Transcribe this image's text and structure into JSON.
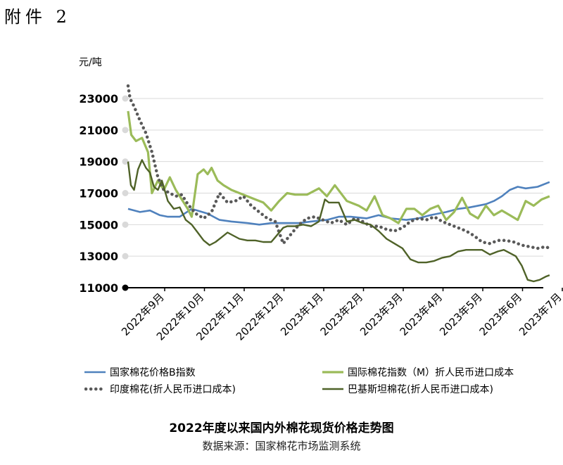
{
  "page": {
    "attachment_label": "附件 2"
  },
  "chart_data": {
    "type": "line",
    "title": "2022年度以来国内外棉花现货价格走势图",
    "source": "数据来源：国家棉花市场监测系统",
    "ylabel": "元/吨",
    "xlabel": "",
    "ylim": [
      11000,
      23000
    ],
    "yticks": [
      11000,
      13000,
      15000,
      17000,
      19000,
      21000,
      23000
    ],
    "grid": true,
    "legend_position": "bottom",
    "categories": [
      "2022年9月",
      "2022年10月",
      "2022年11月",
      "2022年12月",
      "2023年1月",
      "2023年2月",
      "2023年3月",
      "2023年4月",
      "2023年5月",
      "2023年6月",
      "2023年7月"
    ],
    "series": [
      {
        "name": "国家棉花价格B指数",
        "color": "#4f81bd",
        "style": "solid",
        "x": [
          0,
          0.3,
          0.55,
          0.8,
          1.0,
          1.3,
          1.6,
          2.0,
          2.3,
          2.6,
          3.0,
          3.3,
          3.6,
          4.0,
          4.3,
          4.6,
          5.0,
          5.3,
          5.6,
          6.0,
          6.3,
          6.6,
          7.0,
          7.3,
          7.6,
          8.0,
          8.3,
          8.6,
          9.0,
          9.2,
          9.4,
          9.6,
          9.8,
          10.0,
          10.3,
          10.6
        ],
        "values": [
          16000,
          15800,
          15900,
          15600,
          15500,
          15500,
          16000,
          15700,
          15300,
          15200,
          15100,
          15000,
          15100,
          15100,
          15100,
          15200,
          15300,
          15500,
          15500,
          15400,
          15600,
          15400,
          15300,
          15400,
          15600,
          15800,
          16000,
          16100,
          16300,
          16500,
          16800,
          17200,
          17400,
          17300,
          17400,
          17700
        ]
      },
      {
        "name": "国际棉花指数（M）折人民币进口成本",
        "color": "#9bbb59",
        "style": "solid",
        "x": [
          0,
          0.08,
          0.2,
          0.35,
          0.5,
          0.6,
          0.75,
          0.9,
          1.05,
          1.2,
          1.35,
          1.5,
          1.6,
          1.75,
          1.9,
          2.0,
          2.1,
          2.25,
          2.4,
          2.6,
          2.8,
          3.0,
          3.2,
          3.4,
          3.6,
          3.8,
          4.0,
          4.2,
          4.5,
          4.8,
          5.0,
          5.2,
          5.5,
          5.8,
          6.0,
          6.2,
          6.4,
          6.6,
          6.8,
          7.0,
          7.2,
          7.4,
          7.6,
          7.8,
          8.0,
          8.2,
          8.4,
          8.6,
          8.8,
          9.0,
          9.2,
          9.4,
          9.6,
          9.8,
          10.0,
          10.2,
          10.4,
          10.6
        ],
        "values": [
          22200,
          20700,
          20300,
          20500,
          19600,
          17000,
          17800,
          17200,
          18000,
          17200,
          16600,
          16000,
          15500,
          18200,
          18500,
          18200,
          18600,
          17800,
          17500,
          17200,
          17000,
          16800,
          16600,
          16400,
          15900,
          16500,
          17000,
          16900,
          16900,
          17300,
          16800,
          17500,
          16500,
          16200,
          15900,
          16800,
          15600,
          15400,
          15100,
          16000,
          16000,
          15600,
          16000,
          16200,
          15300,
          15800,
          16700,
          15700,
          15400,
          16200,
          15600,
          15900,
          15600,
          15300,
          16500,
          16200,
          16600,
          16800
        ]
      },
      {
        "name": "印度棉花(折人民币进口成本)",
        "color": "#595959",
        "style": "dotted",
        "x": [
          0,
          0.05,
          0.15,
          0.3,
          0.45,
          0.6,
          0.75,
          0.9,
          1.05,
          1.2,
          1.35,
          1.5,
          1.7,
          1.9,
          2.1,
          2.3,
          2.5,
          2.7,
          2.9,
          3.1,
          3.3,
          3.5,
          3.7,
          3.9,
          4.1,
          4.3,
          4.5,
          4.7,
          4.9,
          5.1,
          5.3,
          5.5,
          5.7,
          5.9,
          6.1,
          6.3,
          6.5,
          6.7,
          6.9,
          7.1,
          7.3,
          7.5,
          7.7,
          7.9,
          8.1,
          8.3,
          8.5,
          8.7,
          8.9,
          9.1,
          9.3,
          9.5,
          9.7,
          9.9,
          10.1,
          10.3,
          10.5,
          10.6
        ],
        "values": [
          23800,
          23000,
          22500,
          21600,
          20800,
          19600,
          18000,
          17200,
          17000,
          16800,
          16900,
          16300,
          15700,
          15400,
          15800,
          17000,
          16400,
          16500,
          16800,
          16200,
          15800,
          15400,
          15200,
          13800,
          14400,
          15000,
          15400,
          15500,
          15300,
          15100,
          15300,
          15000,
          15400,
          15200,
          14900,
          14900,
          14700,
          14600,
          14800,
          15200,
          15400,
          15300,
          15500,
          15200,
          15000,
          14800,
          14600,
          14300,
          13900,
          13800,
          14000,
          14000,
          13900,
          13700,
          13600,
          13500,
          13600,
          13500
        ]
      },
      {
        "name": "巴基斯坦棉花(折人民币进口成本)",
        "color": "#4f6228",
        "style": "solid",
        "x": [
          0,
          0.07,
          0.15,
          0.25,
          0.35,
          0.45,
          0.55,
          0.65,
          0.75,
          0.85,
          1.0,
          1.15,
          1.3,
          1.45,
          1.6,
          1.75,
          1.9,
          2.05,
          2.2,
          2.35,
          2.5,
          2.65,
          2.8,
          3.0,
          3.2,
          3.4,
          3.6,
          3.7,
          3.9,
          4.0,
          4.2,
          4.4,
          4.6,
          4.8,
          4.95,
          5.05,
          5.3,
          5.5,
          5.7,
          5.9,
          6.1,
          6.3,
          6.5,
          6.7,
          6.9,
          7.1,
          7.3,
          7.5,
          7.7,
          7.9,
          8.1,
          8.3,
          8.5,
          8.7,
          8.9,
          9.1,
          9.3,
          9.45,
          9.6,
          9.75,
          9.9,
          10.05,
          10.2,
          10.35,
          10.5,
          10.6
        ],
        "values": [
          19000,
          17500,
          17200,
          18500,
          19100,
          18600,
          18300,
          17400,
          17200,
          17800,
          16500,
          16000,
          16100,
          15300,
          15000,
          14500,
          14000,
          13700,
          13900,
          14200,
          14500,
          14300,
          14100,
          14000,
          14000,
          13900,
          13900,
          14200,
          14800,
          14900,
          14900,
          15000,
          14900,
          15200,
          16600,
          16400,
          16400,
          15200,
          15300,
          15100,
          15000,
          14600,
          14100,
          13800,
          13500,
          12800,
          12600,
          12600,
          12700,
          12900,
          13000,
          13300,
          13400,
          13400,
          13400,
          13100,
          13300,
          13400,
          13200,
          13000,
          12400,
          11500,
          11400,
          11500,
          11700,
          11800
        ]
      }
    ]
  }
}
